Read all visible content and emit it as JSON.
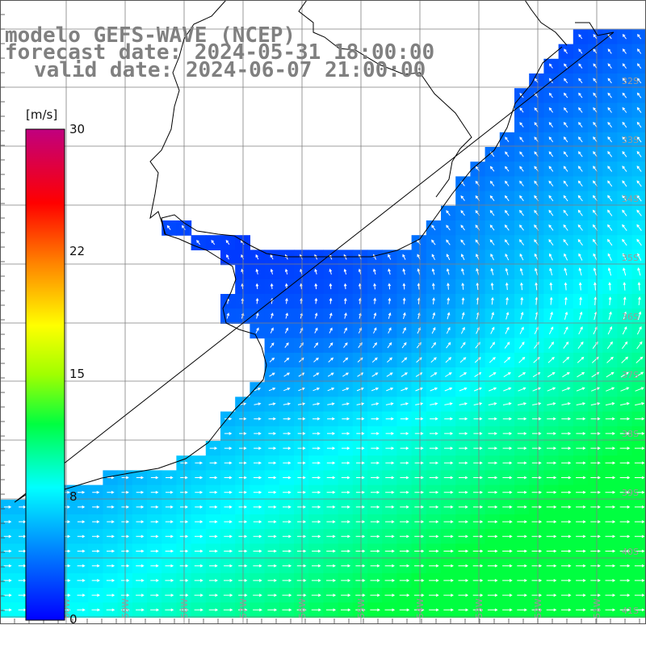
{
  "title": {
    "line1": "modelo GEFS-WAVE (NCEP)",
    "line2": "forecast date: 2024-05-31 18:00:00",
    "line3": "valid date: 2024-06-07 21:00:00"
  },
  "colorbar": {
    "units": "[m/s]",
    "ticks": [
      "30",
      "22",
      "15",
      "8",
      "0"
    ],
    "tick_values": [
      30,
      22,
      15,
      8,
      0
    ],
    "min": 0,
    "max": 30
  },
  "lat_labels": [
    "32S",
    "33S",
    "34S",
    "35S",
    "36S",
    "37S",
    "38S",
    "39S",
    "40S",
    "41S"
  ],
  "lon_labels": [
    "60W",
    "59W",
    "58W",
    "57W",
    "56W",
    "55W",
    "54W",
    "53W",
    "52W",
    "51W"
  ],
  "colors": {
    "land": "#ffffff",
    "grid": "#7f7f7f",
    "coast": "#000000",
    "arrows": "#ffffff",
    "title": "#808080"
  },
  "field": {
    "variable": "wind speed",
    "units": "m/s",
    "wind_direction_north": "from south-east (arrows pointing north-west)",
    "wind_direction_south": "from west (arrows pointing east)",
    "max_speed_region": "south-east, about 12-13 m/s",
    "min_speed_region": "estuary, about 1-3 m/s"
  }
}
